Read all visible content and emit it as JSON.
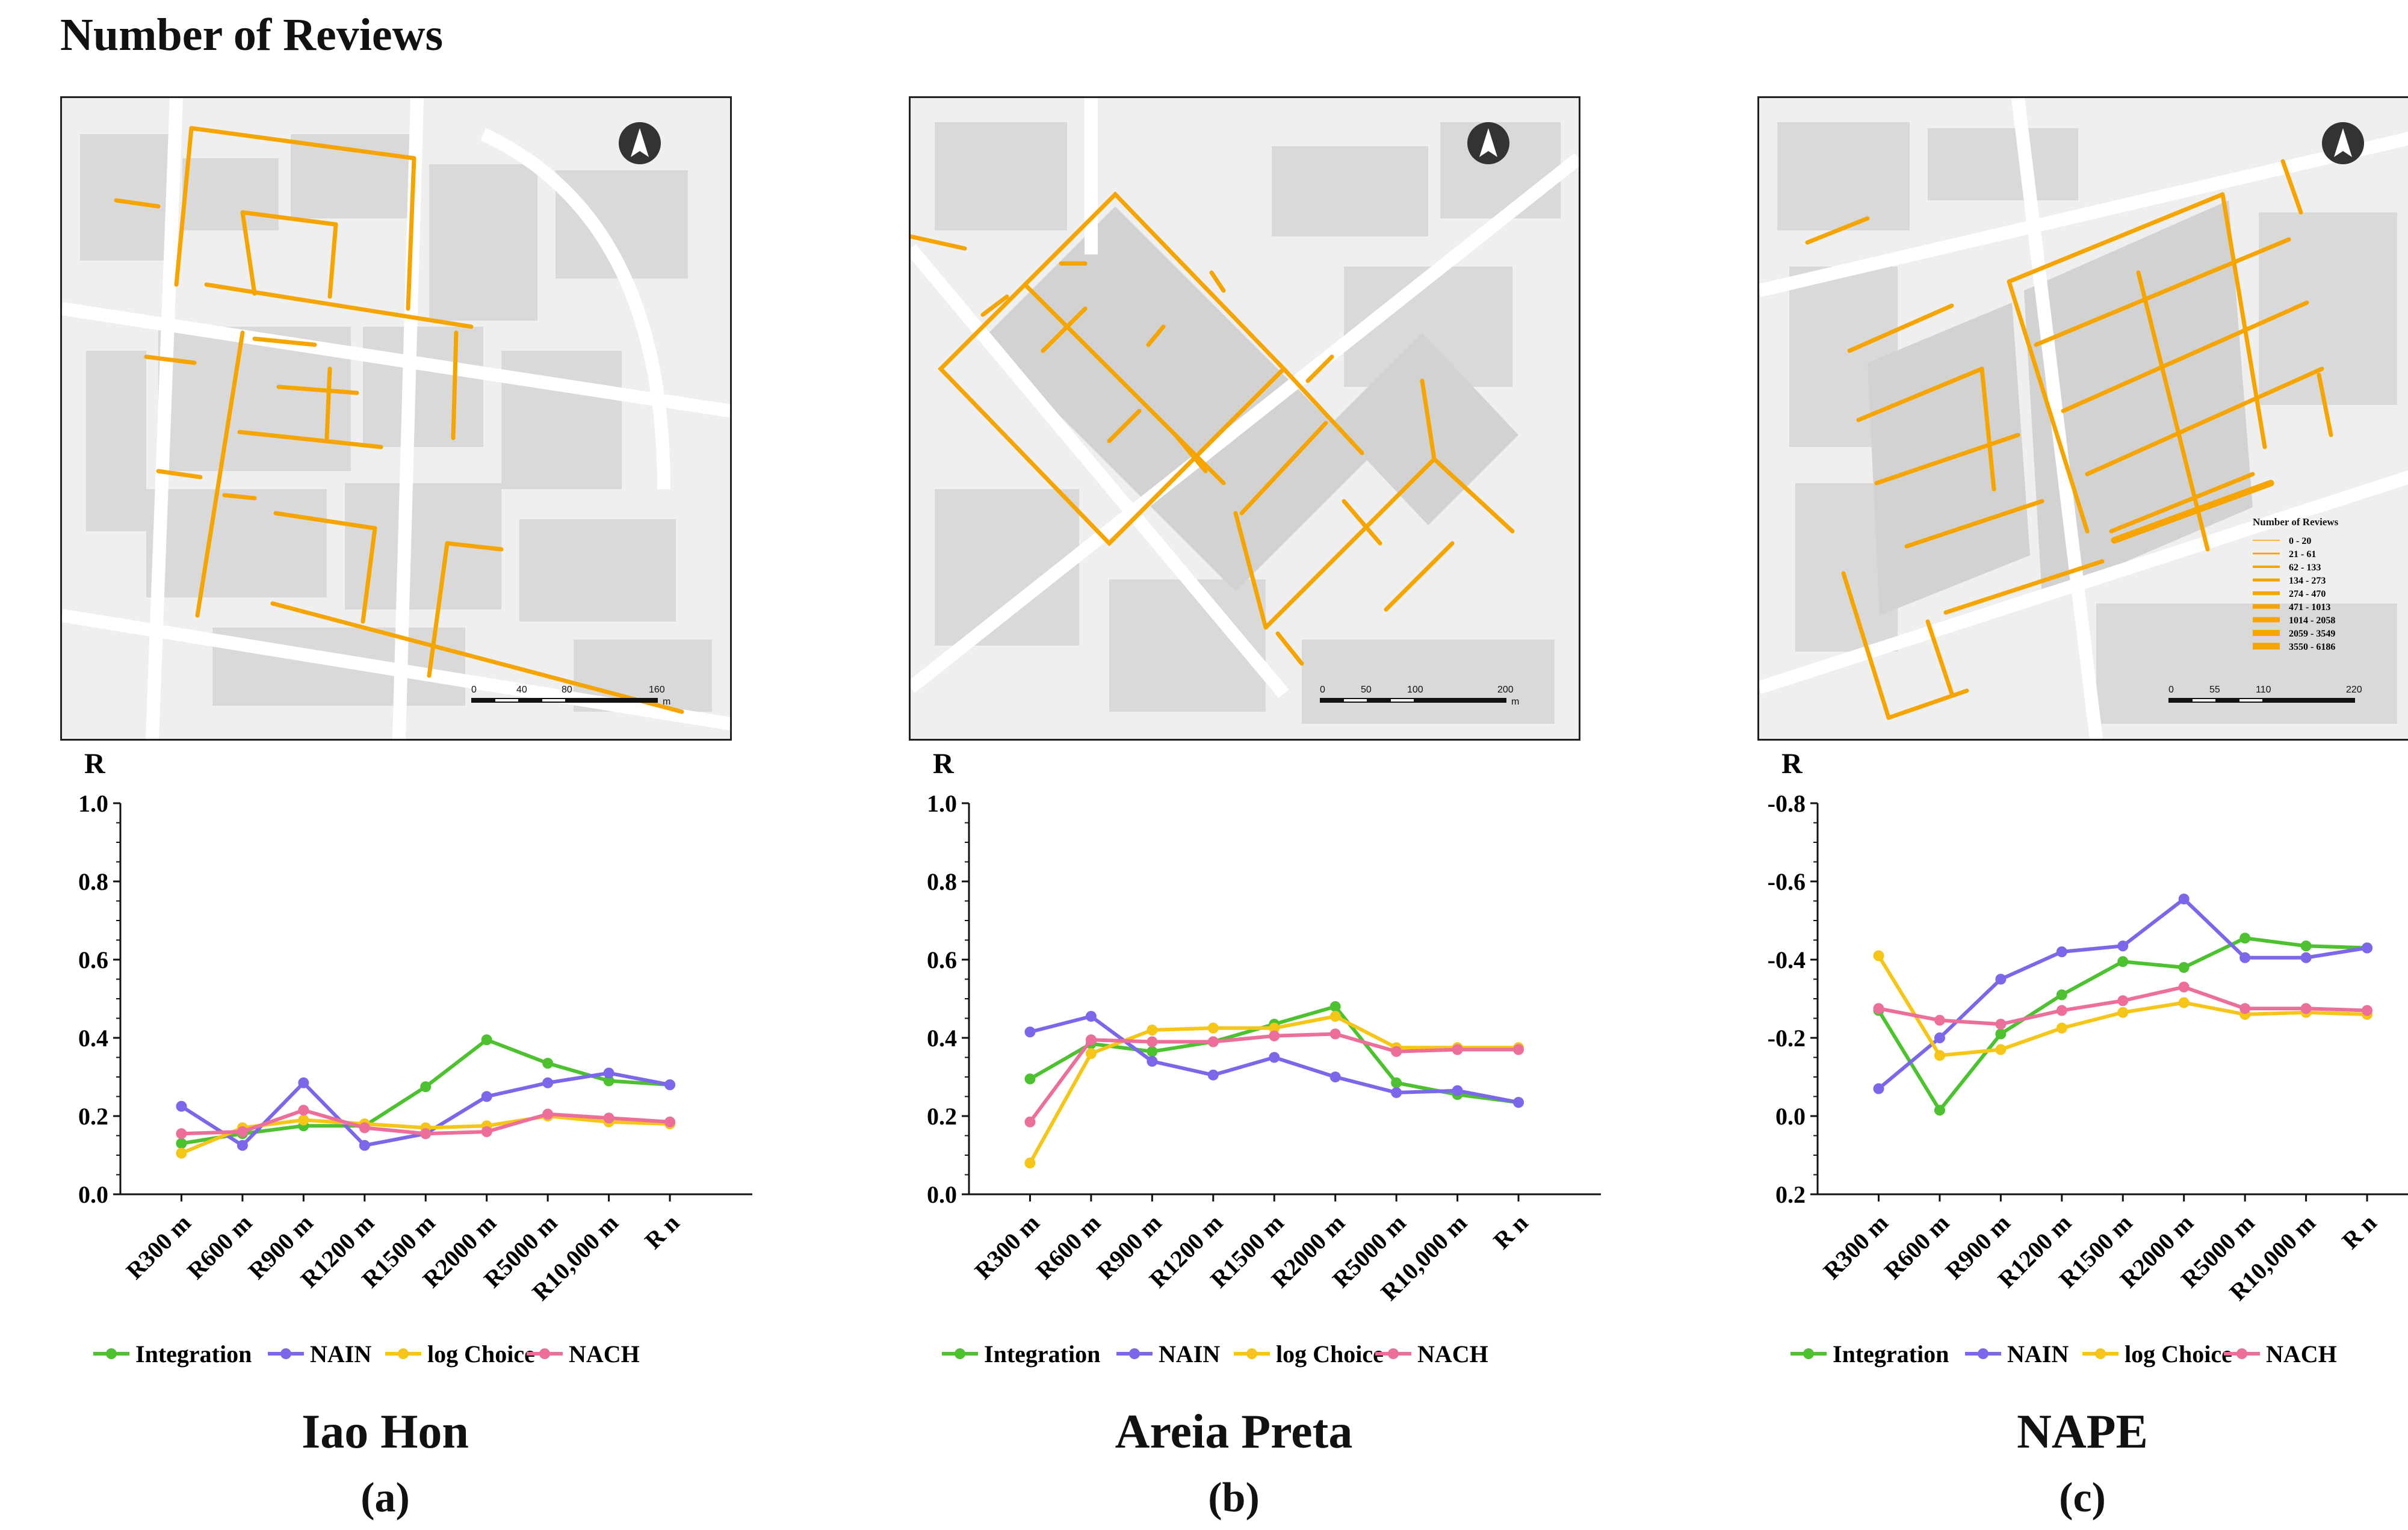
{
  "title": "Number of Reviews",
  "colors": {
    "Integration": "#4dc12f",
    "NAIN": "#7b67ea",
    "log Choice": "#f5c518",
    "NACH": "#ec6f9b",
    "street": "#f5a400"
  },
  "panels": [
    {
      "name": "Iao Hon",
      "letter": "(a)",
      "scalebar": {
        "ticks": [
          "0",
          "40",
          "80",
          "160"
        ],
        "unit": "m"
      },
      "north_icon": "north-arrow-icon"
    },
    {
      "name": "Areia Preta",
      "letter": "(b)",
      "scalebar": {
        "ticks": [
          "0",
          "50",
          "100",
          "200"
        ],
        "unit": "m"
      },
      "north_icon": "north-arrow-icon"
    },
    {
      "name": "NAPE",
      "letter": "(c)",
      "scalebar": {
        "ticks": [
          "0",
          "55",
          "110",
          "220"
        ],
        "unit": "m"
      },
      "north_icon": "north-arrow-icon",
      "legend": {
        "title": "Number of Reviews",
        "classes": [
          "0 - 20",
          "21 - 61",
          "62 - 133",
          "134 - 273",
          "274 - 470",
          "471 - 1013",
          "1014 - 2058",
          "2059 - 3549",
          "3550 - 6186"
        ]
      }
    }
  ],
  "chart_data": [
    {
      "type": "line",
      "title": "Iao Hon",
      "ylabel": "R",
      "xlabel": "",
      "categories": [
        "R300 m",
        "R600 m",
        "R900 m",
        "R1200 m",
        "R1500 m",
        "R2000 m",
        "R5000 m",
        "R10,000 m",
        "R n"
      ],
      "ylim": [
        0.0,
        1.0
      ],
      "yticks": [
        "0.0",
        "0.2",
        "0.4",
        "0.6",
        "0.8",
        "1.0"
      ],
      "legend": "bottom",
      "series": [
        {
          "name": "Integration",
          "values": [
            0.13,
            0.155,
            0.175,
            0.175,
            0.275,
            0.395,
            0.335,
            0.29,
            0.28
          ]
        },
        {
          "name": "NAIN",
          "values": [
            0.225,
            0.125,
            0.285,
            0.125,
            0.155,
            0.25,
            0.285,
            0.31,
            0.28
          ]
        },
        {
          "name": "log Choice",
          "values": [
            0.105,
            0.17,
            0.19,
            0.18,
            0.17,
            0.175,
            0.2,
            0.185,
            0.18
          ]
        },
        {
          "name": "NACH",
          "values": [
            0.155,
            0.16,
            0.215,
            0.17,
            0.155,
            0.16,
            0.205,
            0.195,
            0.185
          ]
        }
      ]
    },
    {
      "type": "line",
      "title": "Areia Preta",
      "ylabel": "R",
      "xlabel": "",
      "categories": [
        "R300 m",
        "R600 m",
        "R900 m",
        "R1200 m",
        "R1500 m",
        "R2000 m",
        "R5000 m",
        "R10,000 m",
        "R n"
      ],
      "ylim": [
        0.0,
        1.0
      ],
      "yticks": [
        "0.0",
        "0.2",
        "0.4",
        "0.6",
        "0.8",
        "1.0"
      ],
      "legend": "bottom",
      "series": [
        {
          "name": "Integration",
          "values": [
            0.295,
            0.385,
            0.365,
            0.39,
            0.435,
            0.48,
            0.285,
            0.255,
            0.235
          ]
        },
        {
          "name": "NAIN",
          "values": [
            0.415,
            0.455,
            0.34,
            0.305,
            0.35,
            0.3,
            0.26,
            0.265,
            0.235
          ]
        },
        {
          "name": "log Choice",
          "values": [
            0.08,
            0.36,
            0.42,
            0.425,
            0.425,
            0.455,
            0.375,
            0.375,
            0.375
          ]
        },
        {
          "name": "NACH",
          "values": [
            0.185,
            0.395,
            0.39,
            0.39,
            0.405,
            0.41,
            0.365,
            0.37,
            0.37
          ]
        }
      ]
    },
    {
      "type": "line",
      "title": "NAPE",
      "ylabel": "R",
      "xlabel": "",
      "categories": [
        "R300 m",
        "R600 m",
        "R900 m",
        "R1200 m",
        "R1500 m",
        "R2000 m",
        "R5000 m",
        "R10,000 m",
        "R n"
      ],
      "ylim": [
        0.2,
        -0.8
      ],
      "yticks": [
        "0.2",
        "0.0",
        "-0.2",
        "-0.4",
        "-0.6",
        "-0.8"
      ],
      "legend": "bottom",
      "series": [
        {
          "name": "Integration",
          "values": [
            -0.27,
            -0.015,
            -0.21,
            -0.31,
            -0.395,
            -0.38,
            -0.455,
            -0.435,
            -0.43
          ]
        },
        {
          "name": "NAIN",
          "values": [
            -0.07,
            -0.2,
            -0.35,
            -0.42,
            -0.435,
            -0.555,
            -0.405,
            -0.405,
            -0.43
          ]
        },
        {
          "name": "log Choice",
          "values": [
            -0.41,
            -0.155,
            -0.17,
            -0.225,
            -0.265,
            -0.29,
            -0.26,
            -0.265,
            -0.26
          ]
        },
        {
          "name": "NACH",
          "values": [
            -0.275,
            -0.245,
            -0.235,
            -0.27,
            -0.295,
            -0.33,
            -0.275,
            -0.275,
            -0.27
          ]
        }
      ]
    }
  ]
}
